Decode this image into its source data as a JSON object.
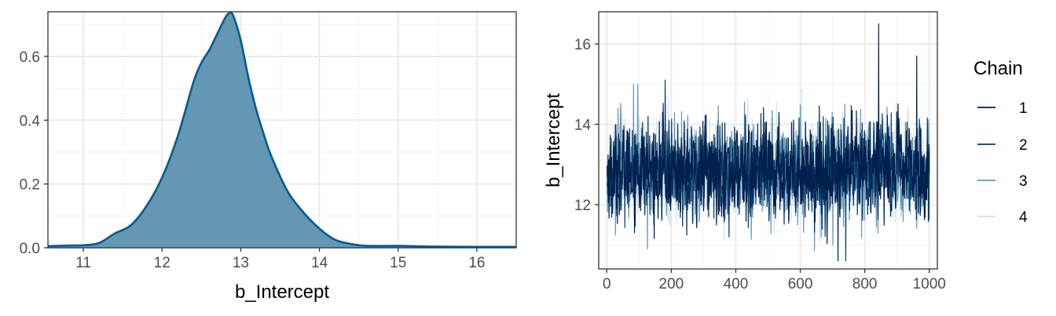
{
  "chart_data": [
    {
      "type": "area",
      "xlabel": "b_Intercept",
      "ylabel": "",
      "xlim": [
        10.55,
        16.5
      ],
      "ylim": [
        0,
        0.74
      ],
      "xticks": [
        11,
        12,
        13,
        14,
        15,
        16
      ],
      "yticks": [
        0.0,
        0.2,
        0.4,
        0.6
      ],
      "ytick_labels": [
        "0.0",
        "0.2",
        "0.4",
        "0.6"
      ],
      "grid": true,
      "fill_color": "#6497b1",
      "line_color": "#005b96",
      "density": {
        "x": [
          10.55,
          10.8,
          11.0,
          11.2,
          11.4,
          11.6,
          11.8,
          12.0,
          12.2,
          12.4,
          12.5,
          12.6,
          12.7,
          12.8,
          12.85,
          12.9,
          13.0,
          13.1,
          13.2,
          13.3,
          13.4,
          13.6,
          13.8,
          14.0,
          14.2,
          14.4,
          14.6,
          15.0,
          15.4,
          16.0,
          16.5
        ],
        "y": [
          0.005,
          0.007,
          0.008,
          0.015,
          0.045,
          0.07,
          0.13,
          0.22,
          0.35,
          0.52,
          0.58,
          0.62,
          0.67,
          0.72,
          0.735,
          0.73,
          0.65,
          0.53,
          0.43,
          0.35,
          0.28,
          0.175,
          0.11,
          0.06,
          0.025,
          0.012,
          0.006,
          0.006,
          0.004,
          0.003,
          0.003
        ]
      }
    },
    {
      "type": "line",
      "xlabel": "",
      "ylabel": "b_Intercept",
      "xlim": [
        -25,
        1025
      ],
      "ylim": [
        10.4,
        16.8
      ],
      "xticks": [
        0,
        200,
        400,
        600,
        800,
        1000
      ],
      "yticks": [
        12,
        14,
        16
      ],
      "grid": true,
      "legend": {
        "title": "Chain",
        "position": "right"
      },
      "series": [
        {
          "name": "1",
          "color": "#011f4b"
        },
        {
          "name": "2",
          "color": "#03396c"
        },
        {
          "name": "3",
          "color": "#6497b1"
        },
        {
          "name": "4",
          "color": "#d1e1ec"
        }
      ],
      "draws_per_chain": 1000,
      "series_summary": {
        "mean": 12.85,
        "sd": 0.55,
        "min": 10.55,
        "max": 16.5
      }
    }
  ]
}
